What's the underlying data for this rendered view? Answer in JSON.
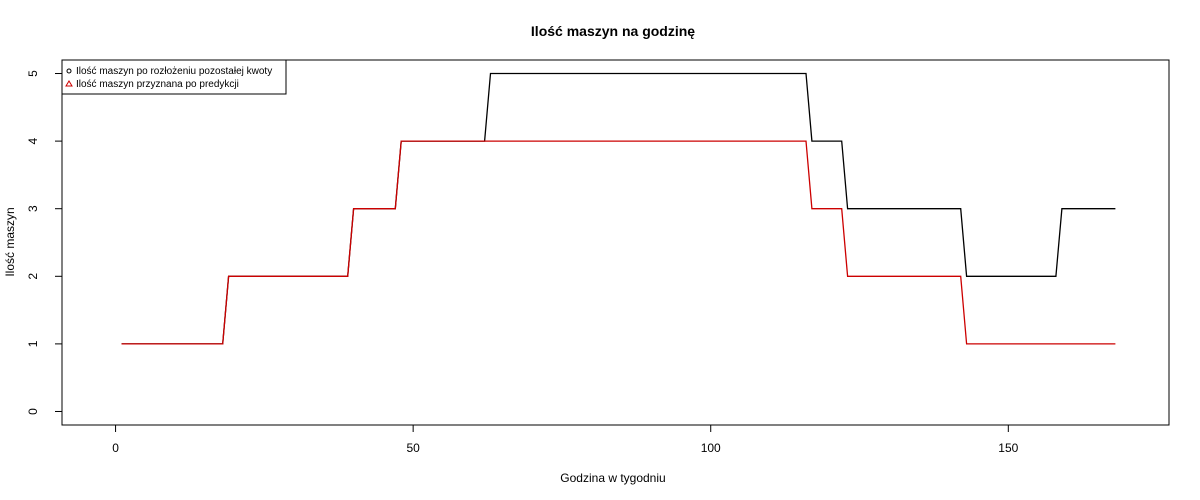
{
  "chart_data": {
    "type": "line",
    "title": "Ilość maszyn na godzinę",
    "xlabel": "Godzina w tygodniu",
    "ylabel": "Ilość maszyn",
    "xlim": [
      -9,
      177
    ],
    "ylim": [
      -0.2,
      5.2
    ],
    "xticks": [
      0,
      50,
      100,
      150
    ],
    "yticks": [
      0,
      1,
      2,
      3,
      4,
      5
    ],
    "grid": false,
    "legend_position": "top-left",
    "series": [
      {
        "name": "Ilość maszyn po rozłożeniu pozostałej kwoty",
        "color": "#000000",
        "marker": "circle",
        "x": [
          1,
          18,
          19,
          39,
          40,
          47,
          48,
          62,
          63,
          116,
          117,
          122,
          123,
          142,
          143,
          158,
          159,
          168
        ],
        "y": [
          1,
          1,
          2,
          2,
          3,
          3,
          4,
          4,
          5,
          5,
          4,
          4,
          3,
          3,
          2,
          2,
          3,
          3
        ]
      },
      {
        "name": "Ilość maszyn przyznana po predykcji",
        "color": "#cc0000",
        "marker": "triangle",
        "x": [
          1,
          18,
          19,
          39,
          40,
          47,
          48,
          116,
          117,
          122,
          123,
          142,
          143,
          168
        ],
        "y": [
          1,
          1,
          2,
          2,
          3,
          3,
          4,
          4,
          3,
          3,
          2,
          2,
          1,
          1
        ]
      }
    ]
  }
}
